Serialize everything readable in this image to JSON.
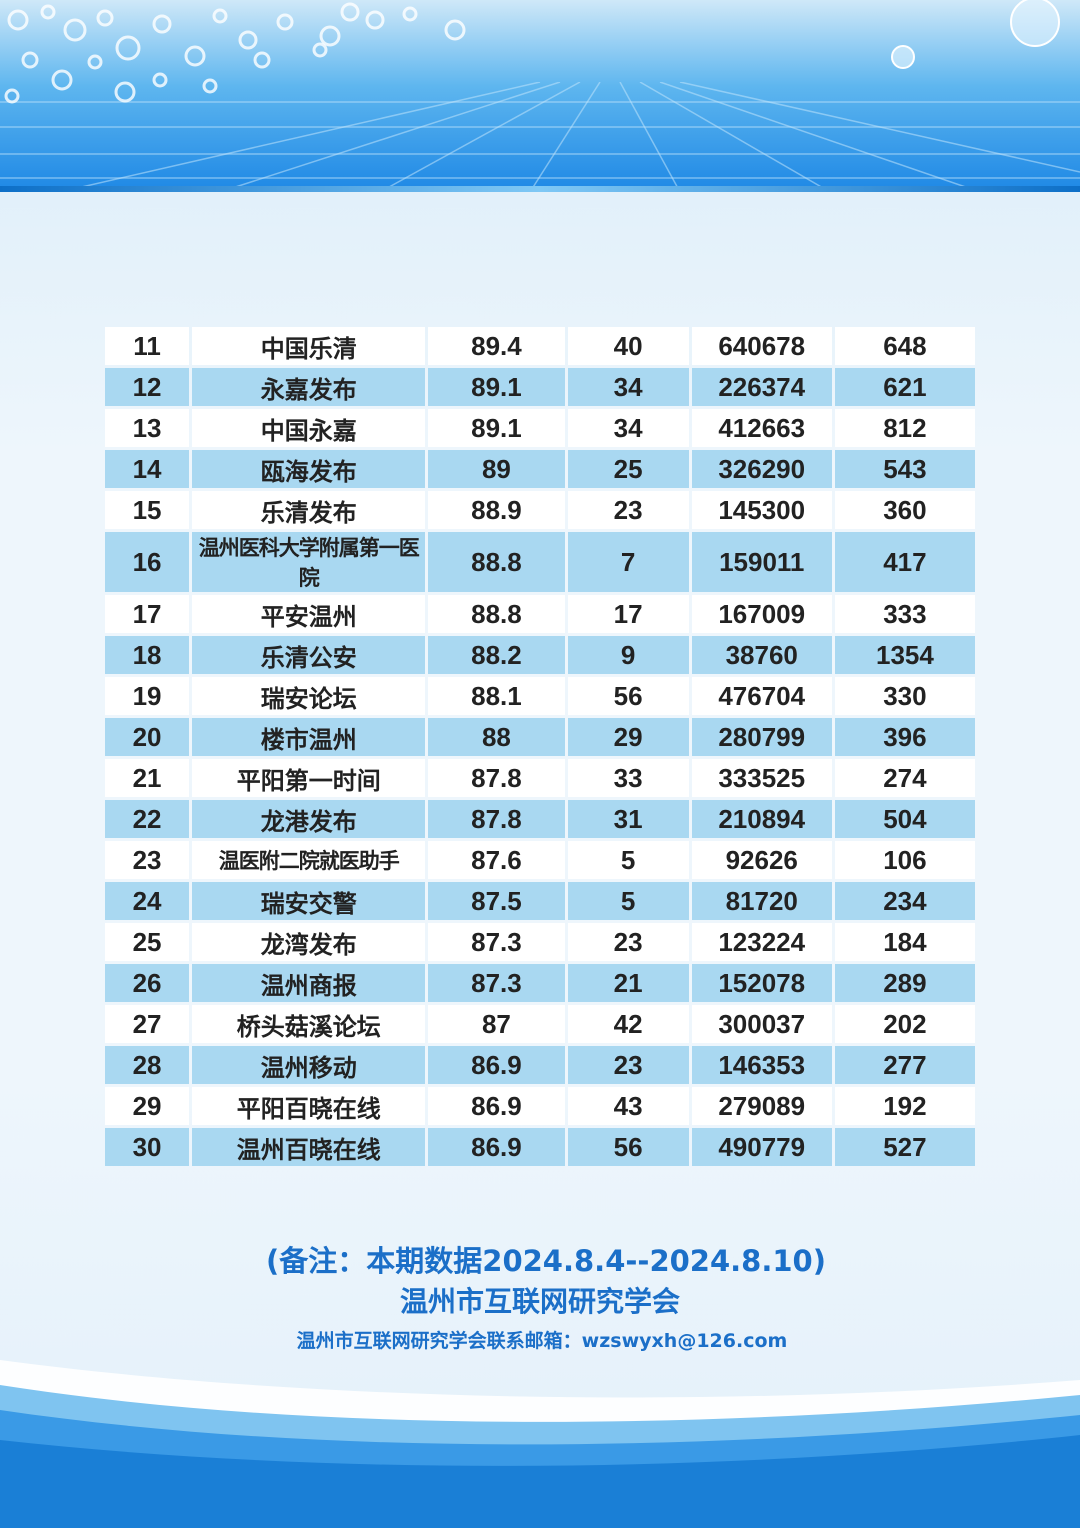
{
  "table": {
    "rows": [
      [
        "11",
        "中国乐清",
        "89.4",
        "40",
        "640678",
        "648"
      ],
      [
        "12",
        "永嘉发布",
        "89.1",
        "34",
        "226374",
        "621"
      ],
      [
        "13",
        "中国永嘉",
        "89.1",
        "34",
        "412663",
        "812"
      ],
      [
        "14",
        "瓯海发布",
        "89",
        "25",
        "326290",
        "543"
      ],
      [
        "15",
        "乐清发布",
        "88.9",
        "23",
        "145300",
        "360"
      ],
      [
        "16",
        "温州医科大学附属第一医院",
        "88.8",
        "7",
        "159011",
        "417"
      ],
      [
        "17",
        "平安温州",
        "88.8",
        "17",
        "167009",
        "333"
      ],
      [
        "18",
        "乐清公安",
        "88.2",
        "9",
        "38760",
        "1354"
      ],
      [
        "19",
        "瑞安论坛",
        "88.1",
        "56",
        "476704",
        "330"
      ],
      [
        "20",
        "楼市温州",
        "88",
        "29",
        "280799",
        "396"
      ],
      [
        "21",
        "平阳第一时间",
        "87.8",
        "33",
        "333525",
        "274"
      ],
      [
        "22",
        "龙港发布",
        "87.8",
        "31",
        "210894",
        "504"
      ],
      [
        "23",
        "温医附二院就医助手",
        "87.6",
        "5",
        "92626",
        "106"
      ],
      [
        "24",
        "瑞安交警",
        "87.5",
        "5",
        "81720",
        "234"
      ],
      [
        "25",
        "龙湾发布",
        "87.3",
        "23",
        "123224",
        "184"
      ],
      [
        "26",
        "温州商报",
        "87.3",
        "21",
        "152078",
        "289"
      ],
      [
        "27",
        "桥头菇溪论坛",
        "87",
        "42",
        "300037",
        "202"
      ],
      [
        "28",
        "温州移动",
        "86.9",
        "23",
        "146353",
        "277"
      ],
      [
        "29",
        "平阳百晓在线",
        "86.9",
        "43",
        "279089",
        "192"
      ],
      [
        "30",
        "温州百晓在线",
        "86.9",
        "56",
        "490779",
        "527"
      ]
    ]
  },
  "footer": {
    "note": "(备注：本期数据2024.8.4--2024.8.10)",
    "org": "温州市互联网研究学会",
    "contact": "温州市互联网研究学会联系邮箱：wzswyxh@126.com"
  },
  "colors": {
    "row_odd": "#ffffff",
    "row_even": "#a9d8f1",
    "footer_text": "#1b6fc8",
    "header_blue": "#1e88e5"
  }
}
